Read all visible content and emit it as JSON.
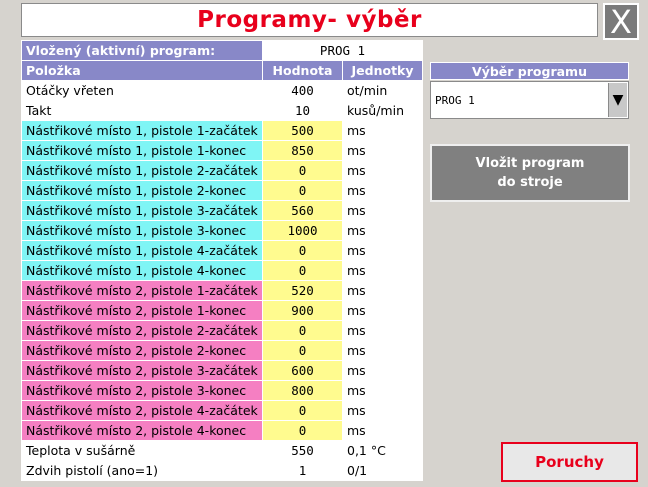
{
  "title": "Programy- výběr",
  "close_label": "X",
  "active_program": {
    "label": "Vložený (aktivní) program:",
    "value": "PROG 1"
  },
  "table_headers": {
    "item": "Položka",
    "value": "Hodnota",
    "unit": "Jednotky"
  },
  "rows": [
    {
      "name": "Otáčky vřeten",
      "value": "400",
      "unit": "ot/min",
      "group": "white"
    },
    {
      "name": "Takt",
      "value": "10",
      "unit": "kusů/min",
      "group": "white"
    },
    {
      "name": "Nástřikové místo 1, pistole 1-začátek",
      "value": "500",
      "unit": "ms",
      "group": "cyan"
    },
    {
      "name": "Nástřikové místo 1, pistole 1-konec",
      "value": "850",
      "unit": "ms",
      "group": "cyan"
    },
    {
      "name": "Nástřikové místo 1, pistole 2-začátek",
      "value": "0",
      "unit": "ms",
      "group": "cyan"
    },
    {
      "name": "Nástřikové místo 1, pistole 2-konec",
      "value": "0",
      "unit": "ms",
      "group": "cyan"
    },
    {
      "name": "Nástřikové místo 1, pistole 3-začátek",
      "value": "560",
      "unit": "ms",
      "group": "cyan"
    },
    {
      "name": "Nástřikové místo 1, pistole 3-konec",
      "value": "1000",
      "unit": "ms",
      "group": "cyan"
    },
    {
      "name": "Nástřikové místo 1, pistole 4-začátek",
      "value": "0",
      "unit": "ms",
      "group": "cyan"
    },
    {
      "name": "Nástřikové místo 1, pistole 4-konec",
      "value": "0",
      "unit": "ms",
      "group": "cyan"
    },
    {
      "name": "Nástřikové místo 2, pistole 1-začátek",
      "value": "520",
      "unit": "ms",
      "group": "pink"
    },
    {
      "name": "Nástřikové místo 2, pistole 1-konec",
      "value": "900",
      "unit": "ms",
      "group": "pink"
    },
    {
      "name": "Nástřikové místo 2, pistole 2-začátek",
      "value": "0",
      "unit": "ms",
      "group": "pink"
    },
    {
      "name": "Nástřikové místo 2, pistole 2-konec",
      "value": "0",
      "unit": "ms",
      "group": "pink"
    },
    {
      "name": "Nástřikové místo 2, pistole 3-začátek",
      "value": "600",
      "unit": "ms",
      "group": "pink"
    },
    {
      "name": "Nástřikové místo 2, pistole 3-konec",
      "value": "800",
      "unit": "ms",
      "group": "pink"
    },
    {
      "name": "Nástřikové místo 2, pistole 4-začátek",
      "value": "0",
      "unit": "ms",
      "group": "pink"
    },
    {
      "name": "Nástřikové místo 2, pistole 4-konec",
      "value": "0",
      "unit": "ms",
      "group": "pink"
    },
    {
      "name": "Teplota v sušárně",
      "value": "550",
      "unit": "0,1 °C",
      "group": "white"
    },
    {
      "name": "Zdvih pistolí (ano=1)",
      "value": "1",
      "unit": "0/1",
      "group": "white"
    }
  ],
  "program_select": {
    "label": "Výběr programu",
    "value": "PROG 1",
    "arrow": "▼"
  },
  "load_button": {
    "line1": "Vložit program",
    "line2": "do stroje"
  },
  "faults_button": "Poruchy",
  "colors": {
    "title_red": "#e8001c",
    "header_blue": "#8888c8",
    "cyan": "#7ff5f5",
    "pink": "#f57fc2",
    "yellow": "#fffb8f",
    "background": "#d6d3ce"
  }
}
